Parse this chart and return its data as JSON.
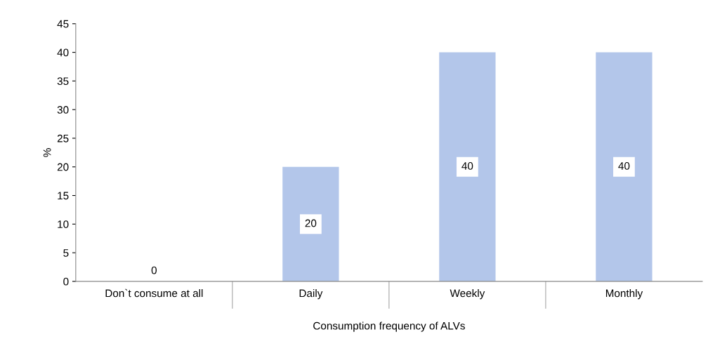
{
  "chart_data": {
    "type": "bar",
    "xlabel": "Consumption frequency of ALVs",
    "ylabel": "%",
    "categories": [
      "Don`t consume at all",
      "Daily",
      "Weekly",
      "Monthly"
    ],
    "values": [
      0,
      20,
      40,
      40
    ],
    "color": "#b3c6ea",
    "ylim": [
      0,
      45
    ],
    "yticks": [
      0,
      5,
      10,
      15,
      20,
      25,
      30,
      35,
      40,
      45
    ],
    "grid": false,
    "data_labels": true
  }
}
